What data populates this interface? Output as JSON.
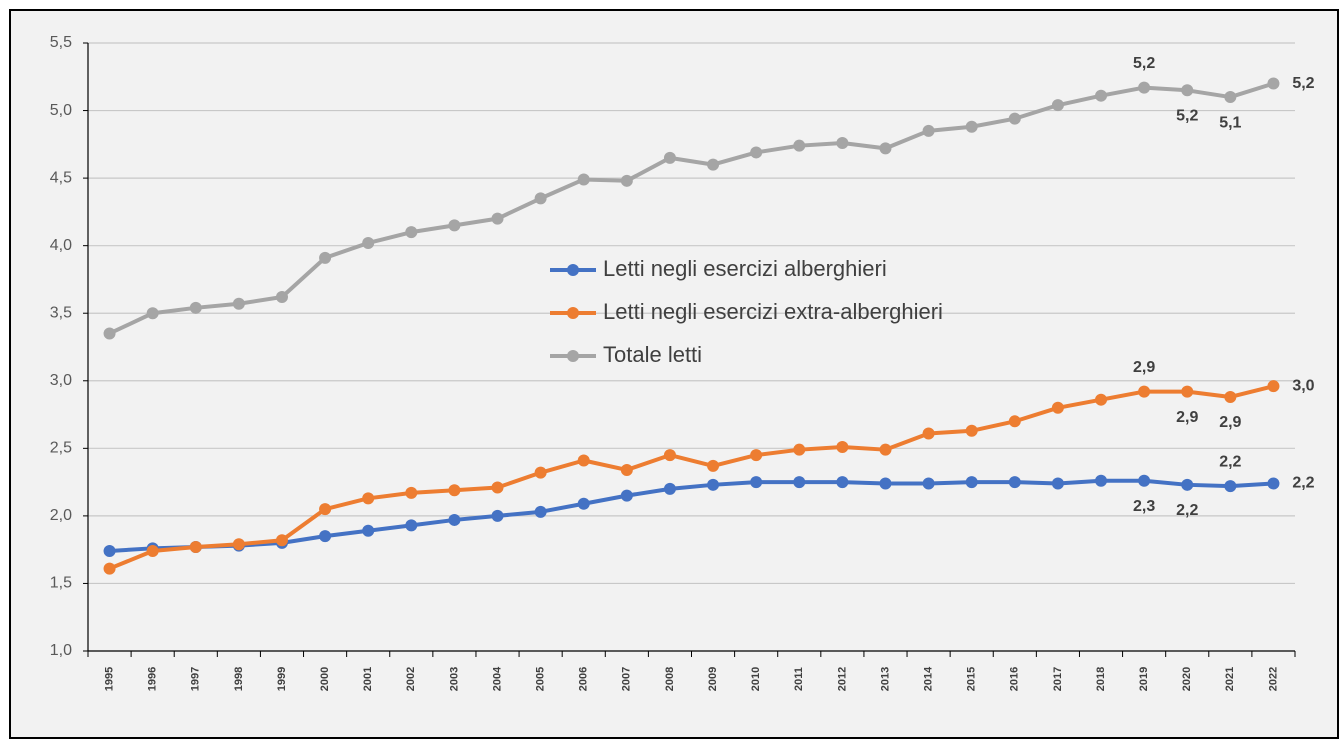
{
  "chart_data": {
    "type": "line",
    "categories": [
      "1995",
      "1996",
      "1997",
      "1998",
      "1999",
      "2000",
      "2001",
      "2002",
      "2003",
      "2004",
      "2005",
      "2006",
      "2007",
      "2008",
      "2009",
      "2010",
      "2011",
      "2012",
      "2013",
      "2014",
      "2015",
      "2016",
      "2017",
      "2018",
      "2019",
      "2020",
      "2021",
      "2022"
    ],
    "series": [
      {
        "name": "Letti negli esercizi alberghieri",
        "color": "#4472c4",
        "values": [
          1.74,
          1.76,
          1.77,
          1.78,
          1.8,
          1.85,
          1.89,
          1.93,
          1.97,
          2.0,
          2.03,
          2.09,
          2.15,
          2.2,
          2.23,
          2.25,
          2.25,
          2.25,
          2.24,
          2.24,
          2.25,
          2.25,
          2.24,
          2.26,
          2.26,
          2.23,
          2.22,
          2.24
        ],
        "value_labels": [
          null,
          null,
          null,
          null,
          null,
          null,
          null,
          null,
          null,
          null,
          null,
          null,
          null,
          null,
          null,
          null,
          null,
          null,
          null,
          null,
          null,
          null,
          null,
          null,
          "2,3",
          "2,2",
          "2,2",
          "2,2"
        ]
      },
      {
        "name": "Letti negli esercizi extra-alberghieri",
        "color": "#ed7d31",
        "values": [
          1.61,
          1.74,
          1.77,
          1.79,
          1.82,
          2.05,
          2.13,
          2.17,
          2.19,
          2.21,
          2.32,
          2.41,
          2.34,
          2.45,
          2.37,
          2.45,
          2.49,
          2.51,
          2.49,
          2.61,
          2.63,
          2.7,
          2.8,
          2.86,
          2.92,
          2.92,
          2.88,
          2.96
        ],
        "value_labels": [
          null,
          null,
          null,
          null,
          null,
          null,
          null,
          null,
          null,
          null,
          null,
          null,
          null,
          null,
          null,
          null,
          null,
          null,
          null,
          null,
          null,
          null,
          null,
          null,
          "2,9",
          "2,9",
          "2,9",
          "3,0"
        ]
      },
      {
        "name": "Totale letti",
        "color": "#a5a5a5",
        "values": [
          3.35,
          3.5,
          3.54,
          3.57,
          3.62,
          3.91,
          4.02,
          4.1,
          4.15,
          4.2,
          4.35,
          4.49,
          4.48,
          4.65,
          4.6,
          4.69,
          4.74,
          4.76,
          4.72,
          4.85,
          4.88,
          4.94,
          5.04,
          5.11,
          5.17,
          5.15,
          5.1,
          5.2
        ],
        "value_labels": [
          null,
          null,
          null,
          null,
          null,
          null,
          null,
          null,
          null,
          null,
          null,
          null,
          null,
          null,
          null,
          null,
          null,
          null,
          null,
          null,
          null,
          null,
          null,
          null,
          "5,2",
          "5,2",
          "5,1",
          "5,2"
        ]
      }
    ],
    "ylim": [
      1.0,
      5.5
    ],
    "yticks": [
      {
        "value": 1.0,
        "label": "1,0"
      },
      {
        "value": 1.5,
        "label": "1,5"
      },
      {
        "value": 2.0,
        "label": "2,0"
      },
      {
        "value": 2.5,
        "label": "2,5"
      },
      {
        "value": 3.0,
        "label": "3,0"
      },
      {
        "value": 3.5,
        "label": "3,5"
      },
      {
        "value": 4.0,
        "label": "4,0"
      },
      {
        "value": 4.5,
        "label": "4,5"
      },
      {
        "value": 5.0,
        "label": "5,0"
      },
      {
        "value": 5.5,
        "label": "5,5"
      }
    ],
    "grid": true
  }
}
